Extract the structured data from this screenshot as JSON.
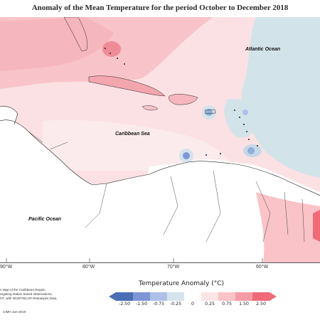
{
  "title": "Anomaly of the Mean Temperature for the period October to December 2018",
  "labels": {
    "atlantic": "Atlantic Ocean",
    "caribbean": "Caribbean Sea",
    "pacific": "Pacific Ocean"
  },
  "longitudes": [
    "90°W",
    "80°W",
    "70°W",
    "60°W"
  ],
  "legend": {
    "title": "Temperature Anomaly (°C)",
    "ticks": [
      "-2.50",
      "-1.50",
      "-0.75",
      "-0.25",
      "0",
      "0.25",
      "0.75",
      "1.50",
      "2.50"
    ],
    "colors": [
      "#4a6fb4",
      "#7f96d6",
      "#adc0e8",
      "#d5e4ec",
      "#ffffff",
      "#fde4e6",
      "#f9c3c8",
      "#f59ca6",
      "#ef6b78"
    ]
  },
  "footnote": {
    "line1": "n Map of the Caribbean Region",
    "line2": "regating station based observations,",
    "line3": "CF, with NCEP/NCAR Reanalysis Data.",
    "credit": "CIMH Jan-2019"
  }
}
